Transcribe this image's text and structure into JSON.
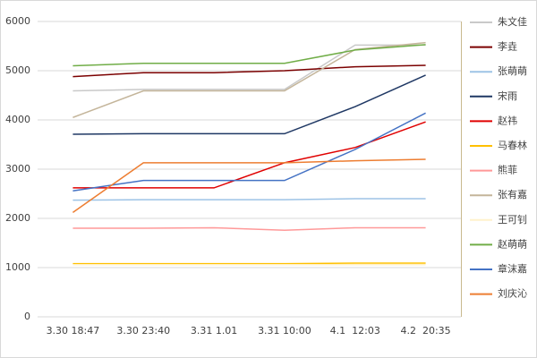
{
  "chart_data": {
    "type": "line",
    "categories": [
      "3.30 18:47",
      "3.30 23:40",
      "3.31 1.01",
      "3.31 10:00",
      "4.1  12:03",
      "4.2  20:35"
    ],
    "ylim": [
      0,
      6000
    ],
    "yticks": [
      0,
      1000,
      2000,
      3000,
      4000,
      5000,
      6000
    ],
    "grid": true,
    "legend": "right",
    "series": [
      {
        "name": "朱文佳",
        "color": "#c9c9c9",
        "values": [
          4590,
          4620,
          4620,
          4620,
          5520,
          5520
        ]
      },
      {
        "name": "李垚",
        "color": "#7b0000",
        "values": [
          4880,
          4960,
          4960,
          5000,
          5080,
          5110
        ]
      },
      {
        "name": "张萌萌",
        "color": "#9dc3e6",
        "values": [
          2370,
          2380,
          2380,
          2380,
          2400,
          2400
        ]
      },
      {
        "name": "宋雨",
        "color": "#1f3864",
        "values": [
          3710,
          3720,
          3720,
          3720,
          4270,
          4910
        ]
      },
      {
        "name": "赵祎",
        "color": "#e00000",
        "values": [
          2620,
          2620,
          2620,
          3130,
          3440,
          3960
        ]
      },
      {
        "name": "马春林",
        "color": "#ffc000",
        "values": [
          1080,
          1080,
          1080,
          1080,
          1090,
          1090
        ]
      },
      {
        "name": "熊菲",
        "color": "#ff9999",
        "values": [
          1800,
          1800,
          1810,
          1760,
          1810,
          1810
        ]
      },
      {
        "name": "张有嘉",
        "color": "#c4b59a",
        "values": [
          4050,
          4590,
          4590,
          4590,
          5430,
          5570
        ]
      },
      {
        "name": "王可钊",
        "color": "#fff2cc",
        "values": [
          1060,
          1060,
          1060,
          1060,
          1060,
          1060
        ]
      },
      {
        "name": "赵萌萌",
        "color": "#70ad47",
        "values": [
          5100,
          5150,
          5150,
          5150,
          5420,
          5530
        ]
      },
      {
        "name": "章沫嘉",
        "color": "#4472c4",
        "values": [
          2560,
          2770,
          2770,
          2770,
          3400,
          4140
        ]
      },
      {
        "name": "刘庆沁",
        "color": "#ed7d31",
        "values": [
          2120,
          3130,
          3130,
          3130,
          3170,
          3200
        ]
      }
    ]
  }
}
